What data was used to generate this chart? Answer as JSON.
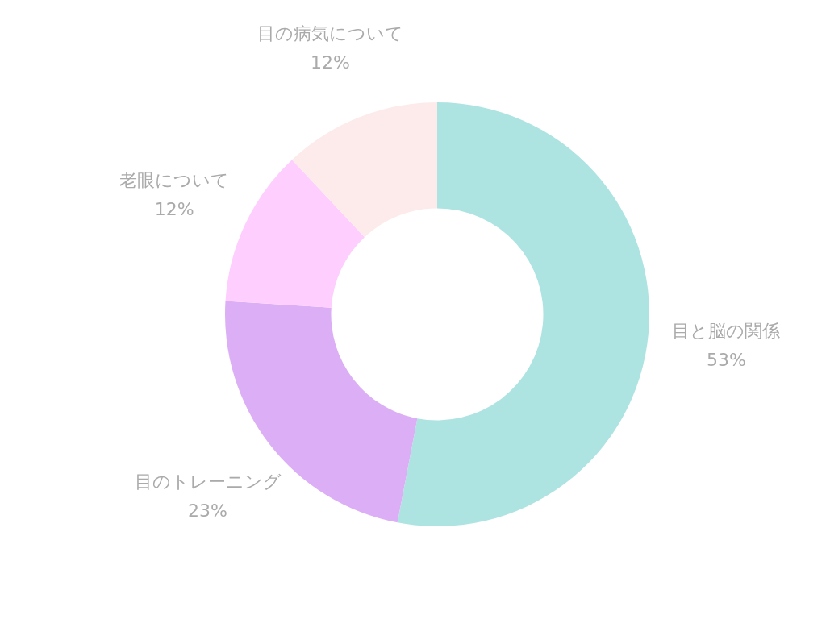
{
  "chart_data": {
    "type": "donut",
    "categories": [
      "目と脳の関係",
      "目のトレーニング",
      "老眼について",
      "目の病気について"
    ],
    "values": [
      53,
      23,
      12,
      12
    ],
    "colors": [
      "#ade4e2",
      "#dbaef5",
      "#fecefe",
      "#fdebeb"
    ],
    "value_labels": [
      "53%",
      "23%",
      "12%",
      "12%"
    ]
  }
}
